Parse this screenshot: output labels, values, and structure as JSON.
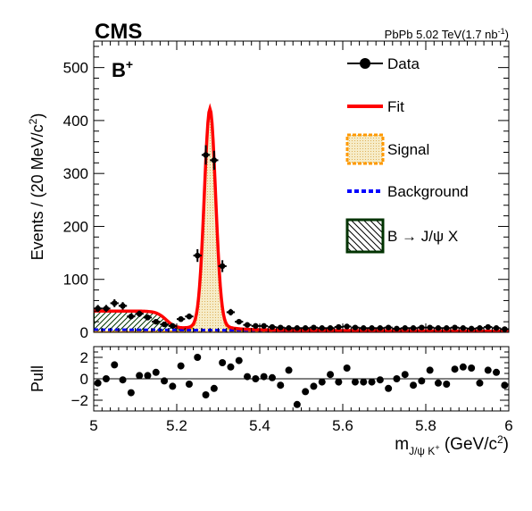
{
  "header": {
    "experiment": "CMS",
    "dataset_prefix": "PbPb 5.02 TeV(1.7 nb",
    "dataset_sup": "-1",
    "dataset_suffix": ")",
    "particle": "B",
    "particle_sup": "+"
  },
  "legend": {
    "items": [
      {
        "label": "Data"
      },
      {
        "label": "Fit"
      },
      {
        "label": "Signal"
      },
      {
        "label": "Background"
      },
      {
        "label": "B → J/ψ X"
      }
    ]
  },
  "colors": {
    "fit": "#ff0000",
    "signal_edge": "#ff9900",
    "signal_fill": "#f3e3b5",
    "background": "#0000ff",
    "bjpsix": "#003300",
    "data": "#000000"
  },
  "chart_data": [
    {
      "type": "scatter",
      "name": "mass-distribution",
      "ylabel_prefix": "Events / (20 MeV/c",
      "ylabel_sup": "2",
      "ylabel_suffix": ")",
      "xlim": [
        5.0,
        6.0
      ],
      "ylim": [
        0,
        550
      ],
      "yticks": [
        "0",
        "100",
        "200",
        "300",
        "400",
        "500"
      ],
      "x": [
        5.01,
        5.03,
        5.05,
        5.07,
        5.09,
        5.11,
        5.13,
        5.15,
        5.17,
        5.19,
        5.21,
        5.23,
        5.25,
        5.27,
        5.29,
        5.31,
        5.33,
        5.35,
        5.37,
        5.39,
        5.41,
        5.43,
        5.45,
        5.47,
        5.49,
        5.51,
        5.53,
        5.55,
        5.57,
        5.59,
        5.61,
        5.63,
        5.65,
        5.67,
        5.69,
        5.71,
        5.73,
        5.75,
        5.77,
        5.79,
        5.81,
        5.83,
        5.85,
        5.87,
        5.89,
        5.91,
        5.93,
        5.95,
        5.97,
        5.99
      ],
      "y": [
        45,
        45,
        55,
        50,
        30,
        35,
        28,
        20,
        15,
        12,
        25,
        30,
        145,
        335,
        325,
        125,
        38,
        20,
        14,
        12,
        12,
        10,
        9,
        8,
        8,
        8,
        9,
        8,
        8,
        10,
        11,
        9,
        8,
        8,
        8,
        9,
        7,
        8,
        8,
        9,
        9,
        8,
        8,
        9,
        8,
        7,
        8,
        10,
        8,
        6
      ],
      "fit": {
        "mean": 5.28,
        "sigma": 0.0135,
        "peak": 400,
        "bkg_const": 5,
        "bkg_slope": -3,
        "jpsix_amp": 35,
        "jpsix_edge": 5.175,
        "jpsix_width": 0.012
      }
    },
    {
      "type": "scatter",
      "name": "pull",
      "xlabel_main": "m",
      "xlabel_sub": "J/ψ K",
      "xlabel_subsup": "+",
      "xlabel_units": " (GeV/c",
      "xlabel_units_sup": "2",
      "xlabel_units_end": ")",
      "ylabel": "Pull",
      "xlim": [
        5.0,
        6.0
      ],
      "ylim": [
        -3,
        3
      ],
      "yticks": [
        "−2",
        "0",
        "2"
      ],
      "xticks": [
        "5",
        "5.2",
        "5.4",
        "5.6",
        "5.8",
        "6"
      ],
      "x": [
        5.01,
        5.03,
        5.05,
        5.07,
        5.09,
        5.11,
        5.13,
        5.15,
        5.17,
        5.19,
        5.21,
        5.23,
        5.25,
        5.27,
        5.29,
        5.31,
        5.33,
        5.35,
        5.37,
        5.39,
        5.41,
        5.43,
        5.45,
        5.47,
        5.49,
        5.51,
        5.53,
        5.55,
        5.57,
        5.59,
        5.61,
        5.63,
        5.65,
        5.67,
        5.69,
        5.71,
        5.73,
        5.75,
        5.77,
        5.79,
        5.81,
        5.83,
        5.85,
        5.87,
        5.89,
        5.91,
        5.93,
        5.95,
        5.97,
        5.99
      ],
      "y": [
        -0.4,
        0.0,
        1.3,
        -0.1,
        -1.3,
        0.3,
        0.3,
        0.6,
        -0.2,
        -0.7,
        1.2,
        -0.5,
        2.0,
        -1.5,
        -0.9,
        1.5,
        1.1,
        1.7,
        0.2,
        0.0,
        0.2,
        0.1,
        -0.6,
        0.8,
        -2.4,
        -1.2,
        -0.7,
        -0.3,
        0.4,
        -0.3,
        1.0,
        -0.3,
        -0.3,
        -0.3,
        -0.1,
        -0.9,
        0.0,
        0.4,
        -0.6,
        -0.2,
        0.8,
        -0.4,
        -0.5,
        0.9,
        1.1,
        1.0,
        -0.4,
        0.8,
        0.6,
        -0.6
      ]
    }
  ]
}
